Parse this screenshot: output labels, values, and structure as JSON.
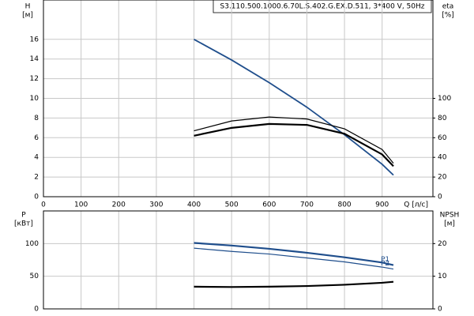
{
  "chart_data": [
    {
      "type": "line",
      "title": "S3.110.500.1000.6.70L.S.402.G.EX.D.511, 3*400 V, 50Hz",
      "ylabel": "H",
      "yunit": "[м]",
      "y2label": "eta",
      "y2unit": "[%]",
      "xlabel": "Q [л/с]",
      "x": [
        400,
        500,
        600,
        700,
        800,
        900,
        930
      ],
      "xlim": [
        0,
        1035
      ],
      "xticks": [
        0,
        100,
        200,
        300,
        400,
        500,
        600,
        700,
        800,
        900
      ],
      "ylim": [
        0,
        20
      ],
      "yticks": [
        0,
        2,
        4,
        6,
        8,
        10,
        12,
        14,
        16
      ],
      "y2lim": [
        0,
        200
      ],
      "y2ticks": [
        0,
        20,
        40,
        60,
        80,
        100
      ],
      "grid": true,
      "series": [
        {
          "color": "#1f4e8c",
          "linewidth": 1.8,
          "values": [
            16,
            13.9,
            11.6,
            9.1,
            6.3,
            3.3,
            2.2
          ]
        },
        {
          "color": "#000000",
          "linewidth": 1.2,
          "axis": "y2",
          "values": [
            67,
            77,
            81,
            79,
            69,
            48,
            34
          ]
        },
        {
          "color": "#000000",
          "linewidth": 2.2,
          "axis": "y2",
          "values": [
            62,
            70,
            74,
            73,
            64,
            43,
            31
          ]
        }
      ]
    },
    {
      "type": "line",
      "ylabel": "P",
      "yunit": "[кВт]",
      "y2label": "NPSH",
      "y2unit": "[м]",
      "x": [
        400,
        500,
        600,
        700,
        800,
        900,
        930
      ],
      "xlim": [
        0,
        1035
      ],
      "xticks": [
        100,
        200,
        300,
        400,
        500,
        600,
        700,
        800,
        900
      ],
      "ylim": [
        0,
        150
      ],
      "yticks": [
        0,
        50,
        100
      ],
      "y2lim": [
        0,
        30
      ],
      "y2ticks": [
        0,
        10,
        20
      ],
      "grid": true,
      "series": [
        {
          "name": "P1",
          "color": "#1f4e8c",
          "linewidth": 2.2,
          "values": [
            101,
            97,
            92,
            86,
            79,
            71,
            67
          ]
        },
        {
          "name": "P2",
          "color": "#1f4e8c",
          "linewidth": 1.2,
          "values": [
            93,
            88,
            84,
            78,
            72,
            64,
            61
          ]
        },
        {
          "color": "#000000",
          "linewidth": 2.2,
          "axis": "y2",
          "values": [
            6.8,
            6.7,
            6.8,
            7.0,
            7.4,
            8.0,
            8.3
          ]
        }
      ]
    }
  ]
}
